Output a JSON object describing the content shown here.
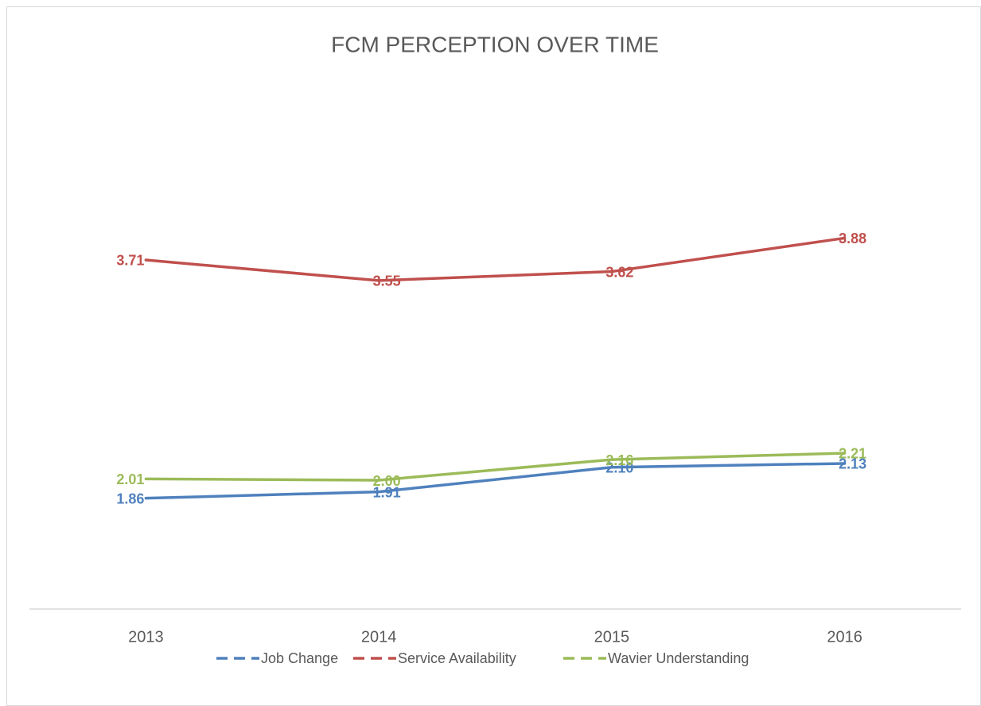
{
  "chart_data": {
    "type": "line",
    "title": "FCM PERCEPTION OVER TIME",
    "categories": [
      "2013",
      "2014",
      "2015",
      "2016"
    ],
    "series": [
      {
        "name": "Job Change",
        "color": "#4f81bd",
        "values": [
          1.86,
          1.91,
          2.1,
          2.13
        ],
        "value_labels": [
          "1.86",
          "1.91",
          "2.10",
          "2.13"
        ]
      },
      {
        "name": "Service Availability",
        "color": "#c0504d",
        "values": [
          3.71,
          3.55,
          3.62,
          3.88
        ],
        "value_labels": [
          "3.71",
          "3.55",
          "3.62",
          "3.88"
        ]
      },
      {
        "name": "Wavier Understanding",
        "color": "#9bbb59",
        "values": [
          2.01,
          2.0,
          2.16,
          2.21
        ],
        "value_labels": [
          "2.01",
          "2.00",
          "2.16",
          "2.21"
        ]
      }
    ],
    "ylim": [
      1,
      5
    ],
    "grid": false,
    "legend": "bottom"
  }
}
